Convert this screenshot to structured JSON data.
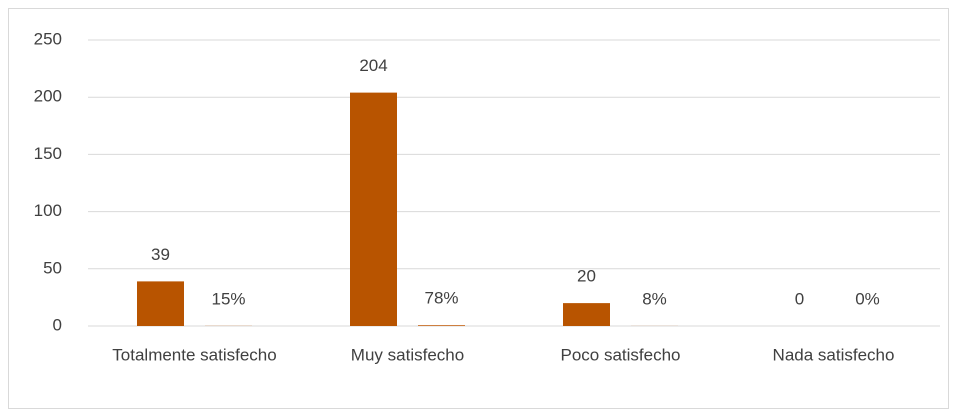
{
  "chart_data": {
    "type": "bar",
    "categories": [
      "Totalmente satisfecho",
      "Muy satisfecho",
      "Poco satisfecho",
      "Nada satisfecho"
    ],
    "series": [
      {
        "color": "#b85400",
        "values": [
          39,
          204,
          20,
          0
        ]
      },
      {
        "color": "#c8702a",
        "values": [
          0.15,
          0.78,
          0.08,
          0
        ],
        "value_labels": [
          "15%",
          "78%",
          "8%",
          "0%"
        ]
      }
    ],
    "ylim": [
      0,
      250
    ],
    "yticks": [
      0,
      50,
      100,
      150,
      200,
      250
    ],
    "grid": true
  }
}
